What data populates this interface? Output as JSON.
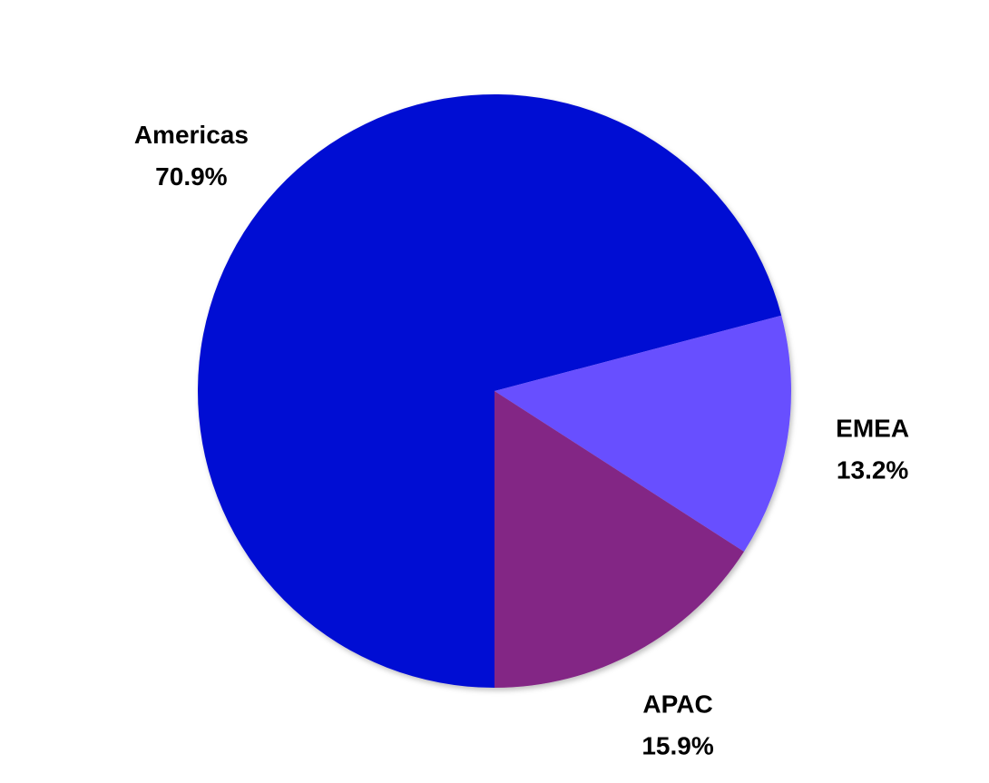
{
  "chart_data": {
    "type": "pie",
    "categories": [
      "Americas",
      "EMEA",
      "APAC"
    ],
    "values": [
      70.9,
      13.2,
      15.9
    ],
    "value_labels": [
      "70.9%",
      "13.2%",
      "15.9%"
    ],
    "colors": [
      "#000cd3",
      "#684fff",
      "#832785"
    ]
  }
}
